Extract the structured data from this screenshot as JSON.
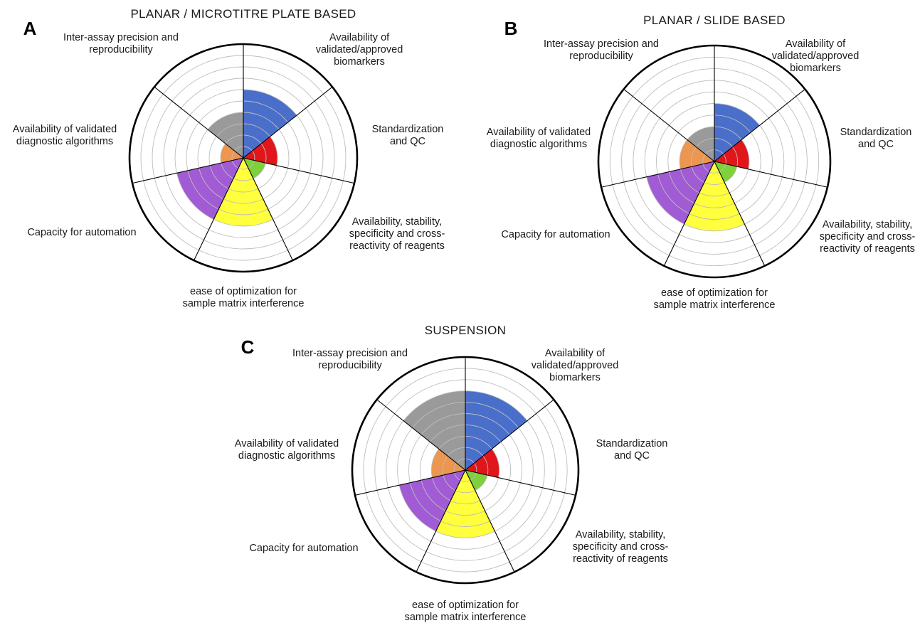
{
  "chart_data": [
    {
      "type": "polar_area",
      "panel": "A",
      "title": "PLANAR / MICROTITRE PLATE BASED",
      "rmax": 10,
      "categories": [
        "Availability of validated/approved biomarkers",
        "Standardization and QC",
        "Availability, stability, specificity and cross-reactivity of reagents",
        "ease of optimization for sample matrix interference",
        "Capacity for automation",
        "Availability of validated diagnostic algorithms",
        "Inter-assay precision and reproducibility"
      ],
      "values": [
        6,
        3,
        2,
        6,
        6,
        2,
        4
      ],
      "colors": [
        "#4a6fca",
        "#e0161b",
        "#7ed13a",
        "#ffff3d",
        "#a15bd4",
        "#ec9650",
        "#9a9a9a"
      ]
    },
    {
      "type": "polar_area",
      "panel": "B",
      "title": "PLANAR / SLIDE BASED",
      "rmax": 10,
      "categories": [
        "Availability of validated/approved biomarkers",
        "Standardization and QC",
        "Availability, stability, specificity and cross-reactivity of reagents",
        "ease of optimization for sample matrix interference",
        "Capacity for automation",
        "Availability of validated diagnostic algorithms",
        "Inter-assay precision and reproducibility"
      ],
      "values": [
        5,
        3,
        2,
        6,
        6,
        3,
        3
      ],
      "colors": [
        "#4a6fca",
        "#e0161b",
        "#7ed13a",
        "#ffff3d",
        "#a15bd4",
        "#ec9650",
        "#9a9a9a"
      ]
    },
    {
      "type": "polar_area",
      "panel": "C",
      "title": "SUSPENSION",
      "rmax": 10,
      "categories": [
        "Availability of validated/approved biomarkers",
        "Standardization and QC",
        "Availability, stability, specificity and cross-reactivity of reagents",
        "ease of optimization for sample matrix interference",
        "Capacity for automation",
        "Availability of validated diagnostic algorithms",
        "Inter-assay precision and reproducibility"
      ],
      "values": [
        7,
        3,
        2,
        6,
        6,
        3,
        7
      ],
      "colors": [
        "#4a6fca",
        "#e0161b",
        "#7ed13a",
        "#ffff3d",
        "#a15bd4",
        "#ec9650",
        "#9a9a9a"
      ]
    }
  ]
}
